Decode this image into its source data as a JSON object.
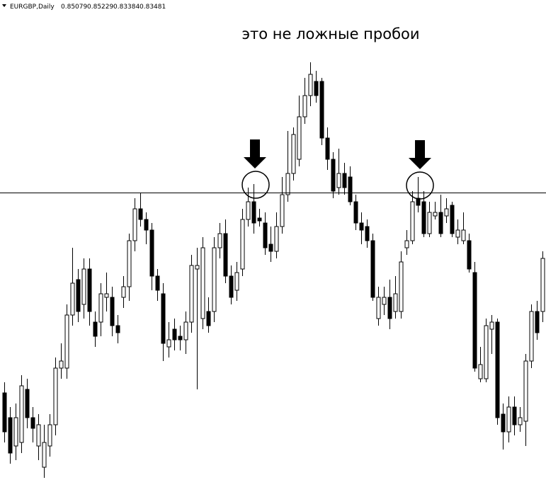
{
  "chart_data": {
    "type": "candlestick",
    "symbol": "EURGBP,Daily",
    "header_ohlc": [
      0.85079,
      0.85229,
      0.83384,
      0.83481
    ],
    "title": "это не ложные пробои",
    "ylim": [
      0.8305,
      0.9
    ],
    "level": 0.8728,
    "up_color": "#ffffff",
    "down_color": "#000000",
    "open": [
      0.8445,
      0.841,
      0.837,
      0.8375,
      0.845,
      0.841,
      0.837,
      0.834,
      0.837,
      0.84,
      0.848,
      0.848,
      0.8555,
      0.8605,
      0.857,
      0.862,
      0.8545,
      0.8545,
      0.858,
      0.858,
      0.854,
      0.858,
      0.8595,
      0.866,
      0.8705,
      0.869,
      0.8675,
      0.861,
      0.8585,
      0.851,
      0.8535,
      0.8525,
      0.852,
      0.8545,
      0.862,
      0.855,
      0.856,
      0.856,
      0.865,
      0.867,
      0.861,
      0.859,
      0.862,
      0.869,
      0.8715,
      0.8692,
      0.8685,
      0.8655,
      0.8645,
      0.868,
      0.8725,
      0.8755,
      0.8775,
      0.8835,
      0.8865,
      0.8885,
      0.8885,
      0.8805,
      0.8775,
      0.8735,
      0.8755,
      0.875,
      0.8715,
      0.8685,
      0.868,
      0.866,
      0.855,
      0.857,
      0.858,
      0.856,
      0.856,
      0.865,
      0.866,
      0.872,
      0.8715,
      0.867,
      0.8695,
      0.87,
      0.8695,
      0.871,
      0.8665,
      0.866,
      0.866,
      0.8615,
      0.8465,
      0.8465,
      0.8535,
      0.8545,
      0.8415,
      0.839,
      0.8425,
      0.84,
      0.8405,
      0.849,
      0.856,
      0.856
    ],
    "high": [
      0.846,
      0.8425,
      0.843,
      0.847,
      0.8465,
      0.8425,
      0.8415,
      0.84,
      0.8415,
      0.8495,
      0.8515,
      0.857,
      0.865,
      0.862,
      0.8635,
      0.8635,
      0.856,
      0.86,
      0.8615,
      0.8595,
      0.8555,
      0.861,
      0.867,
      0.872,
      0.8728,
      0.87,
      0.8685,
      0.862,
      0.86,
      0.8545,
      0.855,
      0.854,
      0.856,
      0.864,
      0.865,
      0.8665,
      0.858,
      0.8665,
      0.8685,
      0.869,
      0.8625,
      0.863,
      0.8705,
      0.8735,
      0.874,
      0.8705,
      0.87,
      0.868,
      0.87,
      0.875,
      0.8815,
      0.882,
      0.8865,
      0.889,
      0.8912,
      0.89,
      0.889,
      0.882,
      0.8785,
      0.879,
      0.877,
      0.8765,
      0.8725,
      0.87,
      0.869,
      0.867,
      0.8595,
      0.8595,
      0.8605,
      0.861,
      0.8645,
      0.8675,
      0.873,
      0.875,
      0.873,
      0.8715,
      0.8715,
      0.8725,
      0.872,
      0.8715,
      0.869,
      0.87,
      0.867,
      0.863,
      0.851,
      0.855,
      0.8555,
      0.855,
      0.843,
      0.844,
      0.844,
      0.8425,
      0.85,
      0.857,
      0.8575,
      0.8645
    ],
    "low": [
      0.8375,
      0.8345,
      0.835,
      0.836,
      0.8395,
      0.8375,
      0.835,
      0.8325,
      0.8355,
      0.8385,
      0.8465,
      0.8465,
      0.854,
      0.8545,
      0.855,
      0.854,
      0.851,
      0.8525,
      0.856,
      0.8525,
      0.8515,
      0.8565,
      0.8575,
      0.8645,
      0.868,
      0.8655,
      0.859,
      0.8575,
      0.849,
      0.8495,
      0.8505,
      0.8505,
      0.85,
      0.853,
      0.845,
      0.8535,
      0.853,
      0.8545,
      0.8635,
      0.86,
      0.857,
      0.8575,
      0.861,
      0.868,
      0.867,
      0.868,
      0.864,
      0.863,
      0.8635,
      0.867,
      0.8715,
      0.8745,
      0.8765,
      0.8825,
      0.885,
      0.8855,
      0.8795,
      0.876,
      0.872,
      0.8725,
      0.8725,
      0.871,
      0.8675,
      0.8655,
      0.865,
      0.8575,
      0.854,
      0.8555,
      0.8535,
      0.855,
      0.855,
      0.864,
      0.8655,
      0.87,
      0.8665,
      0.8665,
      0.869,
      0.8665,
      0.8685,
      0.8665,
      0.8655,
      0.8655,
      0.8615,
      0.8475,
      0.846,
      0.846,
      0.85,
      0.84,
      0.8365,
      0.8375,
      0.8385,
      0.839,
      0.837,
      0.848,
      0.852,
      0.8545
    ],
    "close": [
      0.839,
      0.836,
      0.841,
      0.8455,
      0.841,
      0.8395,
      0.84,
      0.8375,
      0.84,
      0.848,
      0.849,
      0.8555,
      0.86,
      0.856,
      0.862,
      0.856,
      0.8525,
      0.8585,
      0.8585,
      0.854,
      0.853,
      0.8595,
      0.866,
      0.8705,
      0.869,
      0.8675,
      0.861,
      0.859,
      0.8515,
      0.852,
      0.852,
      0.852,
      0.8545,
      0.8625,
      0.8625,
      0.865,
      0.854,
      0.865,
      0.867,
      0.861,
      0.858,
      0.8615,
      0.869,
      0.8715,
      0.8685,
      0.8688,
      0.865,
      0.8645,
      0.868,
      0.8725,
      0.8755,
      0.881,
      0.8835,
      0.8865,
      0.8895,
      0.8865,
      0.8805,
      0.8775,
      0.873,
      0.8755,
      0.8735,
      0.8715,
      0.8685,
      0.8675,
      0.866,
      0.858,
      0.858,
      0.858,
      0.855,
      0.8585,
      0.863,
      0.866,
      0.8715,
      0.871,
      0.867,
      0.87,
      0.87,
      0.867,
      0.8705,
      0.867,
      0.8675,
      0.8675,
      0.862,
      0.848,
      0.8485,
      0.854,
      0.8545,
      0.841,
      0.839,
      0.8425,
      0.84,
      0.841,
      0.849,
      0.856,
      0.853,
      0.8635
    ]
  }
}
